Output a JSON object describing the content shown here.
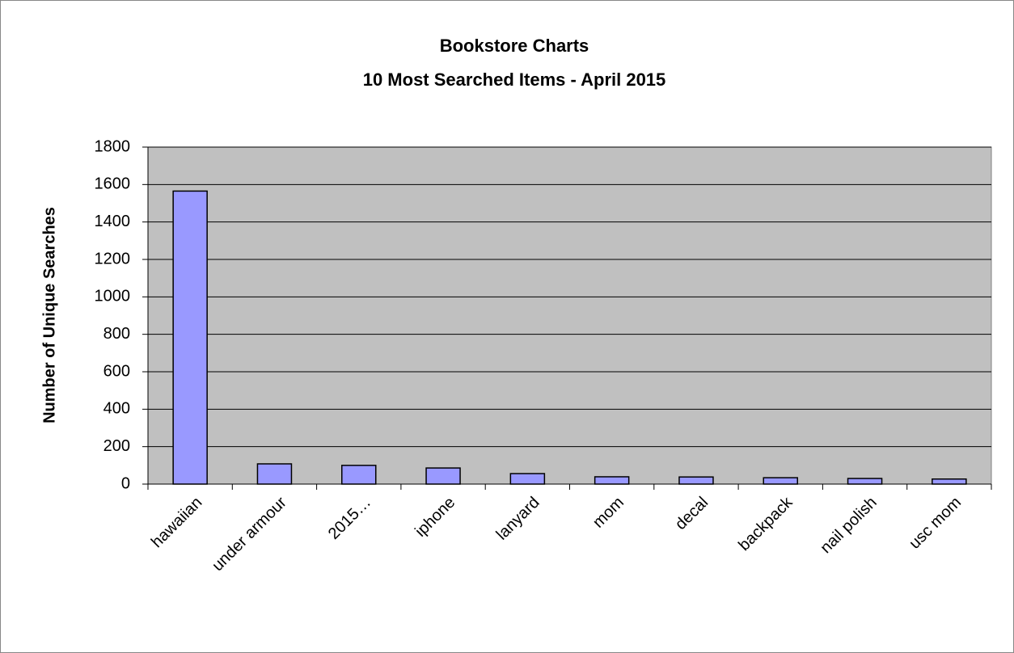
{
  "chart_data": {
    "type": "bar",
    "title": "Bookstore Charts",
    "subtitle": "10 Most Searched Items - April 2015",
    "y_label": "Number of Unique Searches",
    "categories": [
      "hawaiian",
      "under armour",
      "2015…",
      "iphone",
      "lanyard",
      "mom",
      "decal",
      "backpack",
      "nail polish",
      "usc mom"
    ],
    "values": [
      1565,
      108,
      100,
      86,
      56,
      39,
      38,
      34,
      30,
      27
    ],
    "color": "#9999ff",
    "ylim": [
      0,
      1800
    ],
    "yticks": [
      0,
      200,
      400,
      600,
      800,
      1000,
      1200,
      1400,
      1600,
      1800
    ],
    "grid": true
  }
}
